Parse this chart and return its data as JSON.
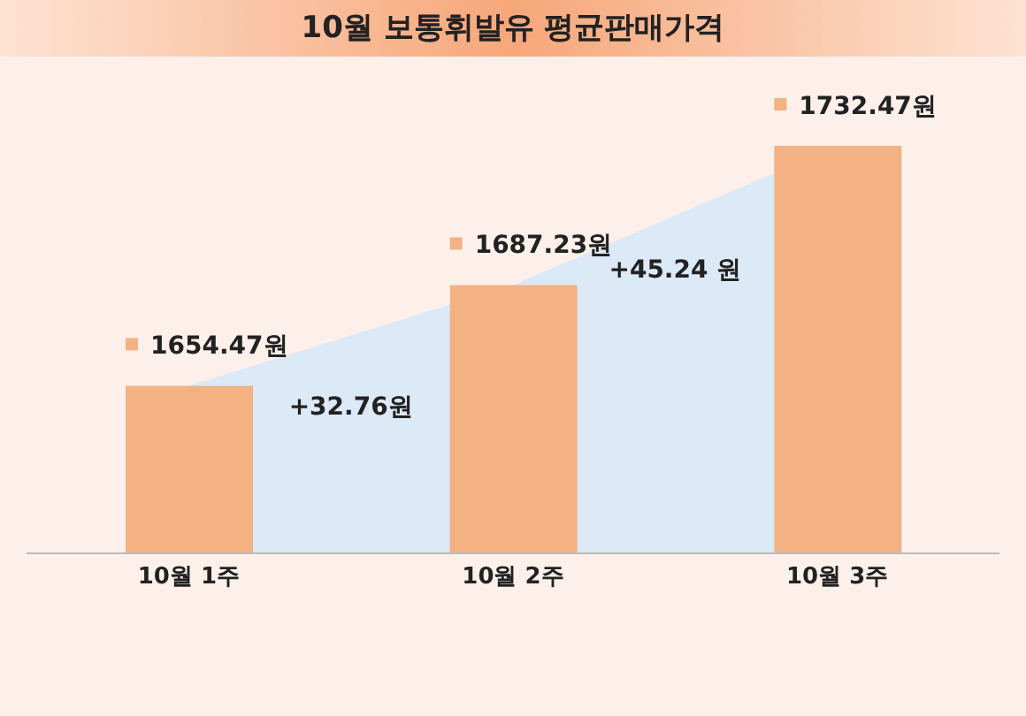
{
  "chart_data": {
    "type": "bar",
    "title": "10월 보통휘발유 평균판매가격",
    "categories": [
      "10월 1주",
      "10월 2주",
      "10월 3주"
    ],
    "series": [
      {
        "type": "area",
        "color": "#dce9f6",
        "values": [
          1654.47,
          1687.23,
          1732.47
        ]
      },
      {
        "color": "#f4b183",
        "values": [
          1654.47,
          1687.23,
          1732.47
        ],
        "value_labels": [
          "1654.47원",
          "1687.23원",
          "1732.47원"
        ]
      }
    ],
    "ylim": [
      1600,
      1750
    ],
    "annotations": [
      "+32.76원",
      "+45.24 원"
    ],
    "legend": false,
    "grid": false,
    "tick_labels": "x"
  }
}
